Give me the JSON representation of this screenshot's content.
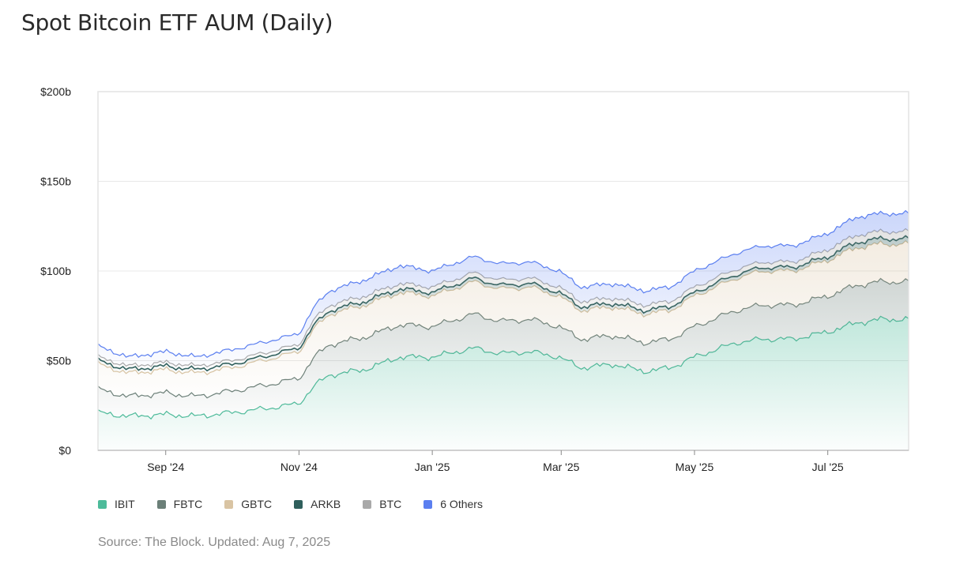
{
  "header": {
    "title": "Spot Bitcoin ETF AUM (Daily)"
  },
  "footer": {
    "source": "Source: The Block. Updated: Aug 7, 2025"
  },
  "chart_data": {
    "type": "area",
    "stacked": true,
    "title": "Spot Bitcoin ETF AUM (Daily)",
    "xlabel": "",
    "ylabel": "",
    "ylim": [
      0,
      200
    ],
    "y_unit": "b",
    "y_ticks": [
      "$0",
      "$50b",
      "$100b",
      "$150b",
      "$200b"
    ],
    "y_tick_values": [
      0,
      50,
      100,
      150,
      200
    ],
    "x_ticks": [
      "Sep '24",
      "Nov '24",
      "Jan '25",
      "Mar '25",
      "May '25",
      "Jul '25"
    ],
    "x_tick_dates": [
      "2024-09-01",
      "2024-11-01",
      "2025-01-01",
      "2025-03-01",
      "2025-05-01",
      "2025-07-01"
    ],
    "xlim": [
      "2024-08-01",
      "2025-08-07"
    ],
    "grid": "horizontal",
    "legend_position": "bottom-left",
    "x": [
      "2024-08-01",
      "2024-08-15",
      "2024-09-01",
      "2024-09-15",
      "2024-10-01",
      "2024-10-15",
      "2024-11-01",
      "2024-11-08",
      "2024-11-15",
      "2024-12-01",
      "2024-12-17",
      "2025-01-01",
      "2025-01-20",
      "2025-02-01",
      "2025-02-15",
      "2025-02-28",
      "2025-03-10",
      "2025-03-25",
      "2025-04-08",
      "2025-04-20",
      "2025-05-01",
      "2025-05-20",
      "2025-06-01",
      "2025-06-15",
      "2025-07-01",
      "2025-07-14",
      "2025-07-25",
      "2025-08-07"
    ],
    "series": [
      {
        "name": "IBIT",
        "color": "#4dbb9a",
        "values": [
          21,
          19,
          20,
          19,
          21,
          23,
          26,
          36,
          42,
          45,
          52,
          52,
          57,
          54,
          55,
          52,
          46,
          48,
          44,
          46,
          52,
          60,
          62,
          62,
          66,
          71,
          73,
          73
        ]
      },
      {
        "name": "FBTC",
        "color": "#6b7f78",
        "values": [
          13,
          11,
          12,
          11,
          12,
          13,
          14,
          16,
          17,
          18,
          18,
          17,
          19,
          18,
          18,
          17,
          16,
          16,
          16,
          16,
          17,
          18,
          19,
          19,
          20,
          21,
          21,
          21
        ]
      },
      {
        "name": "GBTC",
        "color": "#d9c4a3",
        "values": [
          14,
          13,
          13,
          13,
          13,
          14,
          15,
          16,
          17,
          18,
          18,
          17,
          18,
          18,
          18,
          17,
          16,
          16,
          16,
          16,
          17,
          18,
          19,
          19,
          20,
          21,
          21,
          21
        ]
      },
      {
        "name": "ARKB",
        "color": "#2f5f5c",
        "values": [
          2,
          2,
          2,
          2,
          2,
          2,
          2,
          2,
          2,
          2,
          2,
          2,
          2,
          2,
          2,
          2,
          2,
          2,
          2,
          2,
          2,
          2,
          2,
          2,
          2,
          3,
          3,
          3
        ]
      },
      {
        "name": "BTC",
        "color": "#a9a9a9",
        "values": [
          2,
          2,
          2,
          2,
          2,
          2,
          2,
          3,
          3,
          3,
          3,
          3,
          3,
          3,
          3,
          3,
          3,
          3,
          3,
          3,
          3,
          3,
          3,
          3,
          4,
          4,
          4,
          4
        ]
      },
      {
        "name": "6 Others",
        "color": "#5b7ff0",
        "values": [
          6,
          5,
          6,
          5,
          6,
          6,
          6,
          7,
          8,
          9,
          10,
          9,
          9,
          9,
          9,
          9,
          8,
          8,
          8,
          8,
          9,
          9,
          9,
          9,
          9,
          10,
          10,
          10
        ]
      }
    ]
  }
}
